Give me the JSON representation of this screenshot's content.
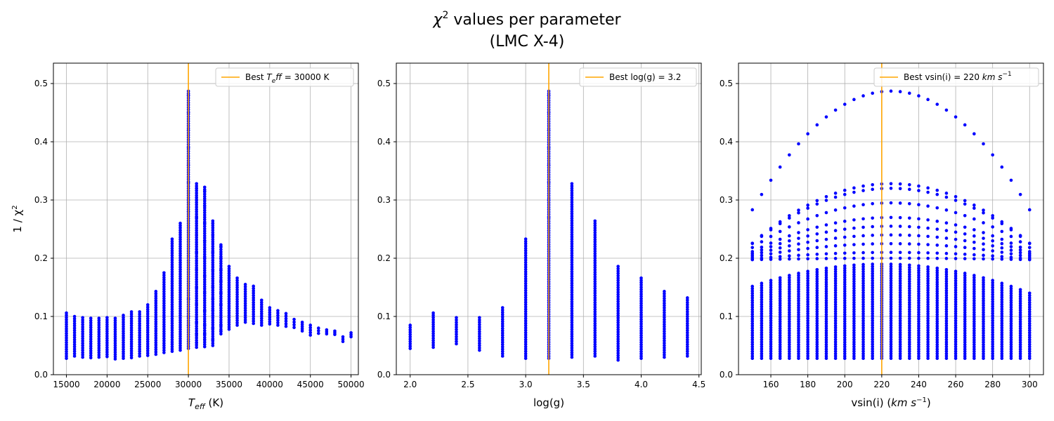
{
  "figure": {
    "title_main": "values per parameter",
    "title_chi": "χ",
    "title_sup": "2",
    "title_line2": "(LMC X-4)"
  },
  "colors": {
    "points": "#0000ff",
    "best_line": "#ffa500",
    "grid": "#b0b0b0"
  },
  "chart_data": [
    {
      "type": "scatter",
      "xlabel": {
        "main": "T",
        "sub": "eff",
        "unit": " (K)"
      },
      "ylabel": {
        "pre": "1 / χ",
        "sup": "2"
      },
      "xlim": [
        13400,
        50900
      ],
      "ylim": [
        0,
        0.535
      ],
      "xticks": [
        15000,
        20000,
        25000,
        30000,
        35000,
        40000,
        45000,
        50000
      ],
      "xtick_labels": [
        "15000",
        "20000",
        "25000",
        "30000",
        "35000",
        "40000",
        "45000",
        "50000"
      ],
      "yticks": [
        0.0,
        0.1,
        0.2,
        0.3,
        0.4,
        0.5
      ],
      "ytick_labels": [
        "0.0",
        "0.1",
        "0.2",
        "0.3",
        "0.4",
        "0.5"
      ],
      "grid": true,
      "legend": {
        "placement": "upper right",
        "label_pre": "Best T",
        "label_sub": "e",
        "label_it": "ff",
        "label_post": " = 30000 K"
      },
      "best_value": 30000,
      "columns": [
        {
          "x": 15000,
          "min": 0.028,
          "max": 0.106
        },
        {
          "x": 16000,
          "min": 0.032,
          "max": 0.1
        },
        {
          "x": 17000,
          "min": 0.03,
          "max": 0.098
        },
        {
          "x": 18000,
          "min": 0.029,
          "max": 0.097
        },
        {
          "x": 19000,
          "min": 0.03,
          "max": 0.097
        },
        {
          "x": 20000,
          "min": 0.031,
          "max": 0.098
        },
        {
          "x": 21000,
          "min": 0.027,
          "max": 0.097
        },
        {
          "x": 22000,
          "min": 0.028,
          "max": 0.102
        },
        {
          "x": 23000,
          "min": 0.029,
          "max": 0.108
        },
        {
          "x": 24000,
          "min": 0.032,
          "max": 0.108
        },
        {
          "x": 25000,
          "min": 0.033,
          "max": 0.12
        },
        {
          "x": 26000,
          "min": 0.035,
          "max": 0.143
        },
        {
          "x": 27000,
          "min": 0.038,
          "max": 0.175
        },
        {
          "x": 28000,
          "min": 0.04,
          "max": 0.233
        },
        {
          "x": 29000,
          "min": 0.042,
          "max": 0.26
        },
        {
          "x": 30000,
          "min": 0.045,
          "max": 0.487
        },
        {
          "x": 31000,
          "min": 0.047,
          "max": 0.328
        },
        {
          "x": 32000,
          "min": 0.048,
          "max": 0.322
        },
        {
          "x": 33000,
          "min": 0.05,
          "max": 0.264
        },
        {
          "x": 34000,
          "min": 0.07,
          "max": 0.223
        },
        {
          "x": 35000,
          "min": 0.078,
          "max": 0.186
        },
        {
          "x": 36000,
          "min": 0.085,
          "max": 0.166
        },
        {
          "x": 37000,
          "min": 0.09,
          "max": 0.155
        },
        {
          "x": 38000,
          "min": 0.088,
          "max": 0.152
        },
        {
          "x": 39000,
          "min": 0.085,
          "max": 0.128
        },
        {
          "x": 40000,
          "min": 0.087,
          "max": 0.115
        },
        {
          "x": 41000,
          "min": 0.085,
          "max": 0.11
        },
        {
          "x": 42000,
          "min": 0.083,
          "max": 0.105
        },
        {
          "x": 43000,
          "min": 0.081,
          "max": 0.095
        },
        {
          "x": 44000,
          "min": 0.075,
          "max": 0.09
        },
        {
          "x": 45000,
          "min": 0.068,
          "max": 0.085
        },
        {
          "x": 46000,
          "min": 0.071,
          "max": 0.08
        },
        {
          "x": 47000,
          "min": 0.07,
          "max": 0.077
        },
        {
          "x": 48000,
          "min": 0.069,
          "max": 0.075
        },
        {
          "x": 49000,
          "min": 0.057,
          "max": 0.065
        },
        {
          "x": 50000,
          "min": 0.065,
          "max": 0.072
        }
      ],
      "scattered_points": [
        {
          "x": 30000,
          "y": 0.48
        },
        {
          "x": 30000,
          "y": 0.45
        },
        {
          "x": 30000,
          "y": 0.42
        },
        {
          "x": 30000,
          "y": 0.39
        },
        {
          "x": 30000,
          "y": 0.36
        },
        {
          "x": 30000,
          "y": 0.33
        },
        {
          "x": 30000,
          "y": 0.3
        },
        {
          "x": 30000,
          "y": 0.28
        },
        {
          "x": 30000,
          "y": 0.13
        },
        {
          "x": 30000,
          "y": 0.1
        },
        {
          "x": 30000,
          "y": 0.085
        },
        {
          "x": 31000,
          "y": 0.32
        },
        {
          "x": 31000,
          "y": 0.3
        },
        {
          "x": 31000,
          "y": 0.27
        },
        {
          "x": 31000,
          "y": 0.24
        },
        {
          "x": 31000,
          "y": 0.21
        },
        {
          "x": 31000,
          "y": 0.18
        },
        {
          "x": 31000,
          "y": 0.15
        },
        {
          "x": 31000,
          "y": 0.12
        },
        {
          "x": 31000,
          "y": 0.09
        },
        {
          "x": 31000,
          "y": 0.07
        },
        {
          "x": 31000,
          "y": 0.055
        },
        {
          "x": 32000,
          "y": 0.315
        },
        {
          "x": 32000,
          "y": 0.29
        },
        {
          "x": 32000,
          "y": 0.26
        },
        {
          "x": 32000,
          "y": 0.23
        },
        {
          "x": 32000,
          "y": 0.2
        },
        {
          "x": 32000,
          "y": 0.17
        },
        {
          "x": 32000,
          "y": 0.14
        },
        {
          "x": 32000,
          "y": 0.11
        },
        {
          "x": 32000,
          "y": 0.085
        },
        {
          "x": 32000,
          "y": 0.07
        },
        {
          "x": 32000,
          "y": 0.06
        },
        {
          "x": 33000,
          "y": 0.26
        },
        {
          "x": 33000,
          "y": 0.24
        },
        {
          "x": 33000,
          "y": 0.21
        },
        {
          "x": 33000,
          "y": 0.18
        },
        {
          "x": 33000,
          "y": 0.15
        },
        {
          "x": 33000,
          "y": 0.13
        },
        {
          "x": 33000,
          "y": 0.11
        },
        {
          "x": 33000,
          "y": 0.08
        },
        {
          "x": 33000,
          "y": 0.06
        },
        {
          "x": 34000,
          "y": 0.22
        },
        {
          "x": 34000,
          "y": 0.2
        },
        {
          "x": 34000,
          "y": 0.18
        },
        {
          "x": 34000,
          "y": 0.16
        },
        {
          "x": 34000,
          "y": 0.14
        },
        {
          "x": 34000,
          "y": 0.12
        },
        {
          "x": 34000,
          "y": 0.085
        },
        {
          "x": 34000,
          "y": 0.075
        }
      ]
    },
    {
      "type": "scatter",
      "xlabel": {
        "main": "log(g)",
        "sub": "",
        "unit": ""
      },
      "xlim": [
        1.88,
        4.52
      ],
      "ylim": [
        0,
        0.535
      ],
      "xticks": [
        2.0,
        2.5,
        3.0,
        3.5,
        4.0,
        4.5
      ],
      "xtick_labels": [
        "2.0",
        "2.5",
        "3.0",
        "3.5",
        "4.0",
        "4.5"
      ],
      "yticks": [
        0.0,
        0.1,
        0.2,
        0.3,
        0.4,
        0.5
      ],
      "ytick_labels": [
        "0.0",
        "0.1",
        "0.2",
        "0.3",
        "0.4",
        "0.5"
      ],
      "grid": true,
      "legend": {
        "placement": "upper right",
        "label": "Best log(g) = 3.2"
      },
      "best_value": 3.2,
      "columns": [
        {
          "x": 2.0,
          "min": 0.045,
          "max": 0.085
        },
        {
          "x": 2.2,
          "min": 0.047,
          "max": 0.106
        },
        {
          "x": 2.4,
          "min": 0.053,
          "max": 0.098
        },
        {
          "x": 2.6,
          "min": 0.042,
          "max": 0.098
        },
        {
          "x": 2.8,
          "min": 0.032,
          "max": 0.115
        },
        {
          "x": 3.0,
          "min": 0.028,
          "max": 0.233
        },
        {
          "x": 3.2,
          "min": 0.028,
          "max": 0.487
        },
        {
          "x": 3.4,
          "min": 0.03,
          "max": 0.328
        },
        {
          "x": 3.6,
          "min": 0.032,
          "max": 0.264
        },
        {
          "x": 3.8,
          "min": 0.025,
          "max": 0.186
        },
        {
          "x": 4.0,
          "min": 0.028,
          "max": 0.166
        },
        {
          "x": 4.2,
          "min": 0.03,
          "max": 0.143
        },
        {
          "x": 4.4,
          "min": 0.032,
          "max": 0.132
        }
      ],
      "scattered_points": [
        {
          "x": 3.2,
          "y": 0.48
        },
        {
          "x": 3.2,
          "y": 0.45
        },
        {
          "x": 3.2,
          "y": 0.42
        },
        {
          "x": 3.2,
          "y": 0.39
        },
        {
          "x": 3.2,
          "y": 0.36
        },
        {
          "x": 3.2,
          "y": 0.33
        },
        {
          "x": 3.2,
          "y": 0.3
        },
        {
          "x": 3.2,
          "y": 0.27
        }
      ]
    },
    {
      "type": "scatter",
      "xlabel": {
        "main": "vsin(i) (",
        "it": "km s",
        "sup": "−1",
        "unit": ")"
      },
      "xlim": [
        142.5,
        307.5
      ],
      "ylim": [
        0,
        0.535
      ],
      "xticks": [
        160,
        180,
        200,
        220,
        240,
        260,
        280,
        300
      ],
      "xtick_labels": [
        "160",
        "180",
        "200",
        "220",
        "240",
        "260",
        "280",
        "300"
      ],
      "yticks": [
        0.0,
        0.1,
        0.2,
        0.3,
        0.4,
        0.5
      ],
      "ytick_labels": [
        "0.0",
        "0.1",
        "0.2",
        "0.3",
        "0.4",
        "0.5"
      ],
      "grid": true,
      "legend": {
        "placement": "upper right",
        "label_pre": "Best vsin(i) = 220 ",
        "label_it": "km s",
        "label_sup": "−1"
      },
      "best_value": 220,
      "columns_x_start": 150,
      "columns_x_end": 300,
      "columns_x_step": 5,
      "dense_min": 0.028,
      "dense_max_center": 0.19,
      "dense_max_edge": 0.14,
      "arc_peaks": [
        0.487,
        0.328,
        0.32,
        0.295,
        0.27,
        0.255,
        0.24,
        0.225,
        0.21,
        0.2
      ]
    }
  ]
}
